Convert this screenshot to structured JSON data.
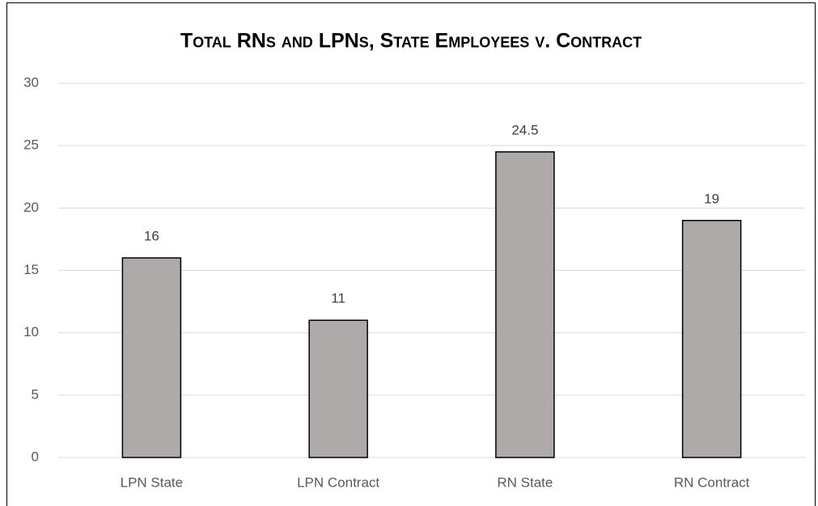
{
  "chart_data": {
    "type": "bar",
    "title": "Total RNs and LPNs, State Employees v. Contract",
    "categories": [
      "LPN State",
      "LPN Contract",
      "RN State",
      "RN Contract"
    ],
    "values": [
      16,
      11,
      24.5,
      19
    ],
    "color": "#aeaaaa",
    "ylim": [
      0,
      30
    ],
    "yticks": [
      0,
      5,
      10,
      15,
      20,
      25,
      30
    ],
    "grid": true
  }
}
